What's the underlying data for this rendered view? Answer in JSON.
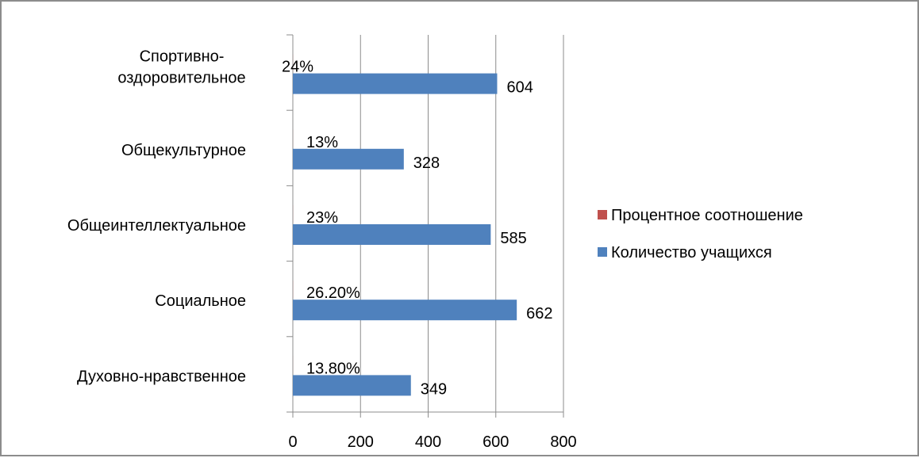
{
  "chart_data": {
    "type": "bar",
    "orientation": "horizontal",
    "categories": [
      [
        "Спортивно-",
        "оздоровительное"
      ],
      [
        "Общекультурное"
      ],
      [
        "Общеинтеллектуальное"
      ],
      [
        "Социальное"
      ],
      [
        "Духовно-нравственное"
      ]
    ],
    "series": [
      {
        "name": "Количество учащихся",
        "color": "#4F81BD",
        "values": [
          604,
          328,
          585,
          662,
          349
        ],
        "labels": [
          "604",
          "328",
          "585",
          "662",
          "349"
        ]
      },
      {
        "name": "Процентное соотношение",
        "color": "#C0504D",
        "values": [
          0.24,
          0.13,
          0.23,
          0.262,
          0.138
        ],
        "labels": [
          "24%",
          "13%",
          "23%",
          "26.20%",
          "13.80%"
        ]
      }
    ],
    "xlim": [
      0,
      800
    ],
    "xticks": [
      "0",
      "200",
      "400",
      "600",
      "800"
    ],
    "grid": true,
    "legend_position": "right"
  }
}
